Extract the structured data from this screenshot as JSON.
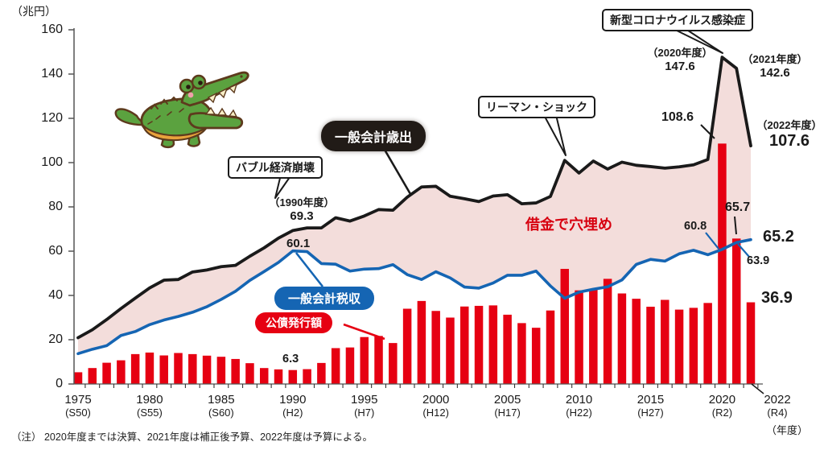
{
  "y_axis": {
    "unit": "（兆円）",
    "ticks": [
      0,
      20,
      40,
      60,
      80,
      100,
      120,
      140,
      160
    ]
  },
  "x_axis": {
    "unit": "（年度）",
    "labels": [
      {
        "year": "1975",
        "era": "(S50)"
      },
      {
        "year": "1980",
        "era": "(S55)"
      },
      {
        "year": "1985",
        "era": "(S60)"
      },
      {
        "year": "1990",
        "era": "(H2)"
      },
      {
        "year": "1995",
        "era": "(H7)"
      },
      {
        "year": "2000",
        "era": "(H12)"
      },
      {
        "year": "2005",
        "era": "(H17)"
      },
      {
        "year": "2010",
        "era": "(H22)"
      },
      {
        "year": "2015",
        "era": "(H27)"
      },
      {
        "year": "2020",
        "era": "(R2)"
      },
      {
        "year": "2022",
        "era": "(R4)"
      }
    ]
  },
  "legend": {
    "expenditure": "一般会計歳出",
    "tax": "一般会計税収",
    "bond": "公債発行額",
    "gap": "借金で穴埋め"
  },
  "callouts": {
    "bubble": "バブル経済崩壊",
    "lehman": "リーマン・ショック",
    "covid": "新型コロナウイルス感染症"
  },
  "annotations": {
    "y1990_era": "（1990年度）",
    "y1990_exp": "69.3",
    "y1990_tax": "60.1",
    "y1990_bond": "6.3",
    "y2020_era": "（2020年度）",
    "y2020_exp": "147.6",
    "y2021_era": "（2021年度）",
    "y2021_exp": "142.6",
    "y2022_era": "（2022年度）",
    "y2022_exp": "107.6",
    "y2020_bond": "108.6",
    "y2020_tax": "60.8",
    "y2021_bond": "65.7",
    "y2021_tax": "63.9",
    "y2022_tax": "65.2",
    "y2022_bond": "36.9"
  },
  "note": "（注） 2020年度までは決算、2021年度は補正後予算、2022年度は予算による。",
  "illustration": {
    "name": "crocodile-cartoon"
  },
  "colors": {
    "expenditure_line": "#1a1a1a",
    "tax_line": "#1565b3",
    "bond_bar": "#e60012",
    "gap_fill": "#f3dddb",
    "gap_text": "#d7000f",
    "axis": "#555555"
  },
  "chart_data": {
    "type": "composite",
    "title": "",
    "ylabel": "（兆円）",
    "xlabel": "（年度）",
    "ylim": [
      0,
      160
    ],
    "x": [
      1975,
      1976,
      1977,
      1978,
      1979,
      1980,
      1981,
      1982,
      1983,
      1984,
      1985,
      1986,
      1987,
      1988,
      1989,
      1990,
      1991,
      1992,
      1993,
      1994,
      1995,
      1996,
      1997,
      1998,
      1999,
      2000,
      2001,
      2002,
      2003,
      2004,
      2005,
      2006,
      2007,
      2008,
      2009,
      2010,
      2011,
      2012,
      2013,
      2014,
      2015,
      2016,
      2017,
      2018,
      2019,
      2020,
      2021,
      2022
    ],
    "series": [
      {
        "name": "一般会計歳出",
        "type": "line",
        "values": [
          20.9,
          24.5,
          29.1,
          34.1,
          38.8,
          43.4,
          46.9,
          47.2,
          50.6,
          51.5,
          53.0,
          53.6,
          57.7,
          61.5,
          65.9,
          69.3,
          70.5,
          70.5,
          75.1,
          73.6,
          75.9,
          78.8,
          78.5,
          84.4,
          89.0,
          89.3,
          84.8,
          83.7,
          82.4,
          84.9,
          85.5,
          81.4,
          81.8,
          84.7,
          101.0,
          95.3,
          100.7,
          97.1,
          100.2,
          98.8,
          98.2,
          97.5,
          98.1,
          99.0,
          101.4,
          147.6,
          142.6,
          107.6
        ]
      },
      {
        "name": "一般会計税収",
        "type": "line",
        "values": [
          13.7,
          15.7,
          17.3,
          21.9,
          23.7,
          26.8,
          28.9,
          30.5,
          32.4,
          34.9,
          38.2,
          41.9,
          46.8,
          50.8,
          54.9,
          60.1,
          59.8,
          54.4,
          54.1,
          51.0,
          51.9,
          52.1,
          53.9,
          49.4,
          47.2,
          50.7,
          47.9,
          43.8,
          43.3,
          45.6,
          49.1,
          49.1,
          51.0,
          44.3,
          38.7,
          41.5,
          42.8,
          43.9,
          47.0,
          54.0,
          56.3,
          55.5,
          58.8,
          60.4,
          58.4,
          60.8,
          63.9,
          65.2
        ]
      },
      {
        "name": "公債発行額",
        "type": "bar",
        "values": [
          5.3,
          7.2,
          9.6,
          10.7,
          13.5,
          14.2,
          12.9,
          14.0,
          13.5,
          12.8,
          12.3,
          11.3,
          9.4,
          7.2,
          6.6,
          6.3,
          6.7,
          9.5,
          16.2,
          16.5,
          21.2,
          21.7,
          18.5,
          34.0,
          37.5,
          33.0,
          30.0,
          35.0,
          35.3,
          35.5,
          31.3,
          27.5,
          25.4,
          33.2,
          52.0,
          42.3,
          42.8,
          47.5,
          40.9,
          38.5,
          34.9,
          38.0,
          33.6,
          34.4,
          36.6,
          108.6,
          65.7,
          36.9
        ]
      }
    ],
    "gap_area_between": [
      "一般会計歳出",
      "一般会計税収"
    ],
    "legend_position": "inline-labels"
  }
}
